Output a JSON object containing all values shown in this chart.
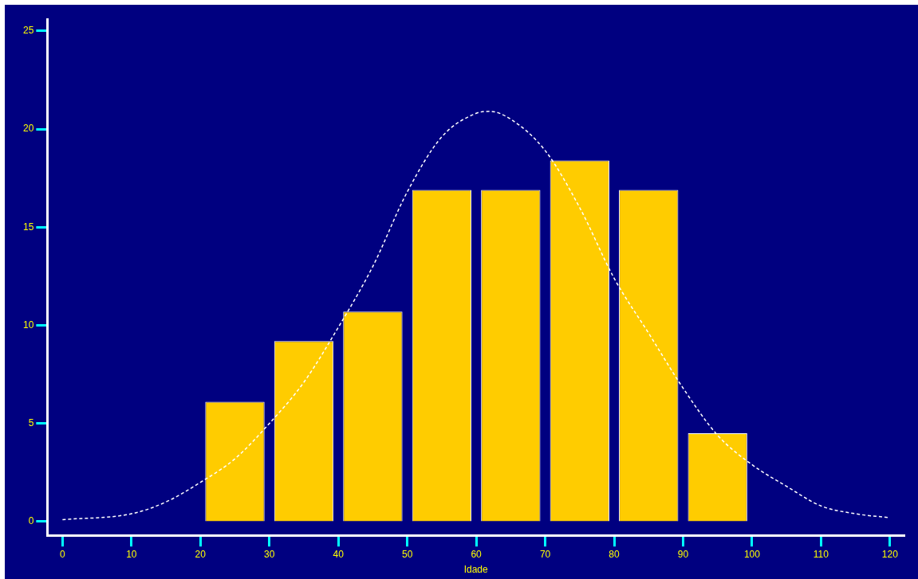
{
  "chart_data": {
    "type": "histogram",
    "xlabel": "Idade",
    "bins": [
      20,
      30,
      40,
      50,
      60,
      70,
      80,
      90,
      100
    ],
    "values": [
      6.1,
      9.2,
      10.7,
      16.9,
      16.9,
      18.4,
      16.9,
      4.5
    ],
    "color": "#ffcc00",
    "series": [
      {
        "type": "line",
        "color": "#ffffff",
        "line_style": "dashed",
        "marker": "none",
        "x": [
          0,
          10,
          15,
          20,
          25,
          30,
          35,
          40,
          45,
          50,
          55,
          60,
          62,
          65,
          70,
          75,
          80,
          85,
          90,
          95,
          100,
          105,
          110,
          115,
          120
        ],
        "values": [
          0.1,
          0.4,
          1.0,
          2.0,
          3.2,
          5.0,
          7.1,
          9.9,
          13.0,
          16.8,
          19.6,
          20.8,
          20.9,
          20.5,
          18.9,
          16.0,
          12.4,
          9.6,
          6.8,
          4.4,
          2.9,
          1.8,
          0.8,
          0.4,
          0.2
        ]
      }
    ],
    "xlim": [
      -2.2,
      122.1
    ],
    "ylim": [
      -0.7,
      25.6
    ],
    "xticks": [
      0,
      10,
      20,
      30,
      40,
      50,
      60,
      70,
      80,
      90,
      100,
      110,
      120
    ],
    "yticks": [
      0,
      5,
      10,
      15,
      20,
      25
    ],
    "grid": false,
    "legend": false
  }
}
